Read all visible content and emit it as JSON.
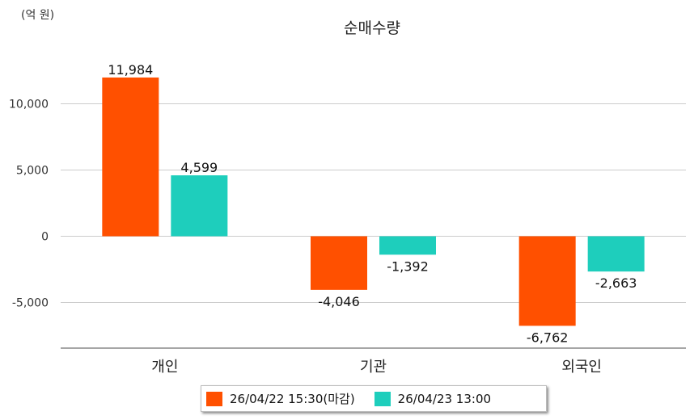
{
  "chart_data": {
    "type": "bar",
    "title": "순매수량",
    "unit_label": "(억 원)",
    "categories": [
      "개인",
      "기관",
      "외국인"
    ],
    "series": [
      {
        "name": "26/04/22 15:30(마감)",
        "color": "#FF5000",
        "values": [
          11984,
          -4046,
          -6762
        ]
      },
      {
        "name": "26/04/23 13:00",
        "color": "#1ECEBC",
        "values": [
          4599,
          -1392,
          -2663
        ]
      }
    ],
    "data_labels": [
      [
        "11,984",
        "-4,046",
        "-6,762"
      ],
      [
        "4,599",
        "-1,392",
        "-2,663"
      ]
    ],
    "yticks": [
      10000,
      5000,
      0,
      -5000
    ],
    "ytick_labels": [
      "10,000",
      "5,000",
      "0",
      "-5,000"
    ],
    "ylim": [
      -8400,
      12800
    ],
    "grid": true,
    "legend_position": "bottom"
  }
}
